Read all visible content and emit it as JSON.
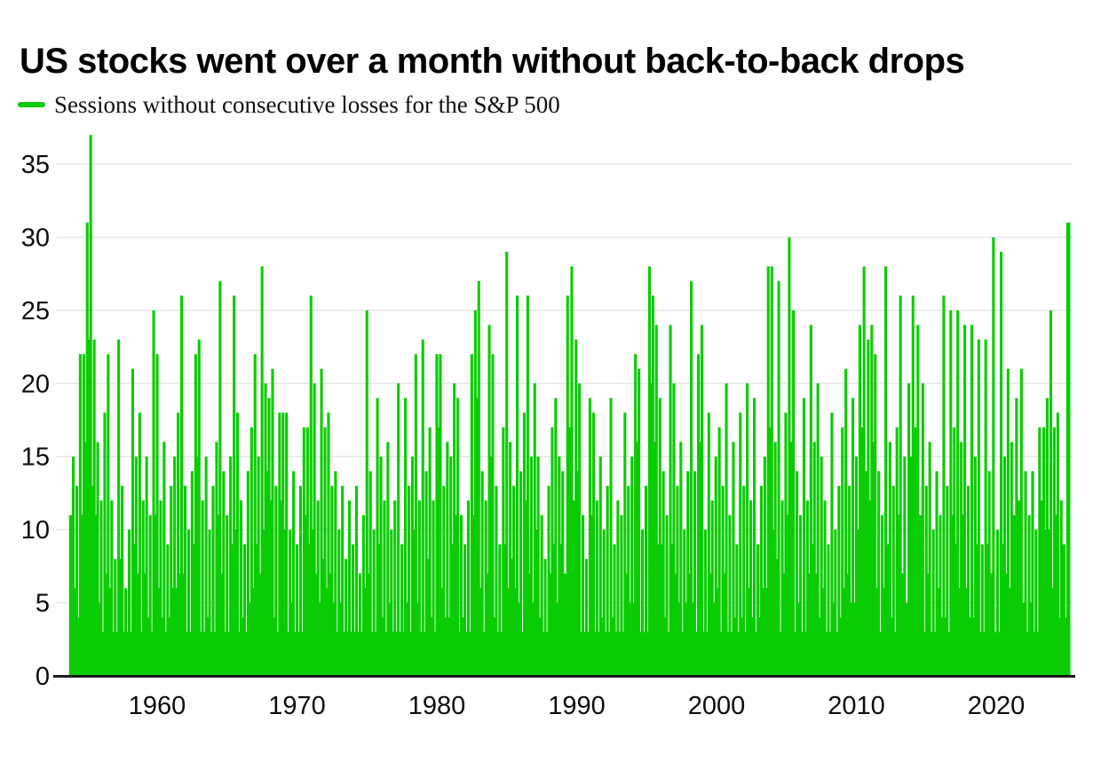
{
  "header": {
    "title": "US stocks went over a month without back-to-back drops"
  },
  "legend": {
    "label": "Sessions without consecutive losses for the S&P 500",
    "swatch_color": "#0acc02"
  },
  "colors": {
    "green": "#0acc02",
    "gridline": "#e7e7e7",
    "axis": "#1a1a1a",
    "text": "#0d0d0d",
    "background": "#ffffff"
  },
  "chart_data": {
    "type": "area",
    "title": "US stocks went over a month without back-to-back drops",
    "series_name": "Sessions without consecutive losses for the S&P 500",
    "xlabel": "",
    "ylabel": "",
    "xlim": [
      1953.8,
      2025.5
    ],
    "ylim": [
      0,
      37
    ],
    "x_ticks": [
      1960,
      1970,
      1980,
      1990,
      2000,
      2010,
      2020
    ],
    "y_ticks": [
      0,
      5,
      10,
      15,
      20,
      25,
      30,
      35
    ],
    "grid": "horizontal",
    "legend_position": "top-left",
    "notable_peaks": {
      "1955": 37,
      "1985": 29,
      "2005": 30,
      "2019": 30,
      "2025": 31
    },
    "points": [
      [
        1953.8,
        11
      ],
      [
        1954.0,
        15
      ],
      [
        1954.25,
        13
      ],
      [
        1954.5,
        22
      ],
      [
        1954.75,
        22
      ],
      [
        1955.0,
        31
      ],
      [
        1955.25,
        37
      ],
      [
        1955.5,
        23
      ],
      [
        1955.75,
        16
      ],
      [
        1956.0,
        12
      ],
      [
        1956.25,
        18
      ],
      [
        1956.5,
        22
      ],
      [
        1956.75,
        12
      ],
      [
        1957.0,
        8
      ],
      [
        1957.25,
        23
      ],
      [
        1957.5,
        13
      ],
      [
        1957.75,
        6
      ],
      [
        1958.0,
        10
      ],
      [
        1958.25,
        21
      ],
      [
        1958.5,
        15
      ],
      [
        1958.75,
        18
      ],
      [
        1959.0,
        12
      ],
      [
        1959.25,
        15
      ],
      [
        1959.5,
        11
      ],
      [
        1959.75,
        25
      ],
      [
        1960.0,
        22
      ],
      [
        1960.25,
        12
      ],
      [
        1960.5,
        16
      ],
      [
        1960.75,
        9
      ],
      [
        1961.0,
        13
      ],
      [
        1961.25,
        15
      ],
      [
        1961.5,
        18
      ],
      [
        1961.75,
        26
      ],
      [
        1962.0,
        13
      ],
      [
        1962.25,
        10
      ],
      [
        1962.5,
        14
      ],
      [
        1962.75,
        22
      ],
      [
        1963.0,
        23
      ],
      [
        1963.25,
        12
      ],
      [
        1963.5,
        15
      ],
      [
        1963.75,
        10
      ],
      [
        1964.0,
        13
      ],
      [
        1964.25,
        16
      ],
      [
        1964.5,
        27
      ],
      [
        1964.75,
        14
      ],
      [
        1965.0,
        11
      ],
      [
        1965.25,
        15
      ],
      [
        1965.5,
        26
      ],
      [
        1965.75,
        18
      ],
      [
        1966.0,
        12
      ],
      [
        1966.25,
        9
      ],
      [
        1966.5,
        14
      ],
      [
        1966.75,
        17
      ],
      [
        1967.0,
        22
      ],
      [
        1967.25,
        15
      ],
      [
        1967.5,
        28
      ],
      [
        1967.75,
        20
      ],
      [
        1968.0,
        19
      ],
      [
        1968.25,
        21
      ],
      [
        1968.5,
        13
      ],
      [
        1968.75,
        18
      ],
      [
        1969.0,
        18
      ],
      [
        1969.25,
        18
      ],
      [
        1969.5,
        10
      ],
      [
        1969.75,
        14
      ],
      [
        1970.0,
        9
      ],
      [
        1970.25,
        13
      ],
      [
        1970.5,
        17
      ],
      [
        1970.75,
        17
      ],
      [
        1971.0,
        26
      ],
      [
        1971.25,
        20
      ],
      [
        1971.5,
        12
      ],
      [
        1971.75,
        21
      ],
      [
        1972.0,
        17
      ],
      [
        1972.25,
        18
      ],
      [
        1972.5,
        13
      ],
      [
        1972.75,
        14
      ],
      [
        1973.0,
        10
      ],
      [
        1973.25,
        13
      ],
      [
        1973.5,
        8
      ],
      [
        1973.75,
        12
      ],
      [
        1974.0,
        9
      ],
      [
        1974.25,
        13
      ],
      [
        1974.5,
        7
      ],
      [
        1974.75,
        11
      ],
      [
        1975.0,
        25
      ],
      [
        1975.25,
        14
      ],
      [
        1975.5,
        10
      ],
      [
        1975.75,
        19
      ],
      [
        1976.0,
        15
      ],
      [
        1976.25,
        12
      ],
      [
        1976.5,
        16
      ],
      [
        1976.75,
        10
      ],
      [
        1977.0,
        12
      ],
      [
        1977.25,
        20
      ],
      [
        1977.5,
        9
      ],
      [
        1977.75,
        19
      ],
      [
        1978.0,
        13
      ],
      [
        1978.25,
        15
      ],
      [
        1978.5,
        22
      ],
      [
        1978.75,
        12
      ],
      [
        1979.0,
        23
      ],
      [
        1979.25,
        14
      ],
      [
        1979.5,
        17
      ],
      [
        1979.75,
        12
      ],
      [
        1980.0,
        22
      ],
      [
        1980.25,
        22
      ],
      [
        1980.5,
        13
      ],
      [
        1980.75,
        16
      ],
      [
        1981.0,
        15
      ],
      [
        1981.25,
        20
      ],
      [
        1981.5,
        19
      ],
      [
        1981.75,
        11
      ],
      [
        1982.0,
        9
      ],
      [
        1982.25,
        12
      ],
      [
        1982.5,
        22
      ],
      [
        1982.75,
        25
      ],
      [
        1983.0,
        27
      ],
      [
        1983.25,
        14
      ],
      [
        1983.5,
        12
      ],
      [
        1983.75,
        24
      ],
      [
        1984.0,
        22
      ],
      [
        1984.25,
        13
      ],
      [
        1984.5,
        9
      ],
      [
        1984.75,
        17
      ],
      [
        1985.0,
        29
      ],
      [
        1985.25,
        16
      ],
      [
        1985.5,
        13
      ],
      [
        1985.75,
        26
      ],
      [
        1986.0,
        14
      ],
      [
        1986.25,
        18
      ],
      [
        1986.5,
        26
      ],
      [
        1986.75,
        15
      ],
      [
        1987.0,
        20
      ],
      [
        1987.25,
        15
      ],
      [
        1987.5,
        11
      ],
      [
        1987.75,
        8
      ],
      [
        1988.0,
        13
      ],
      [
        1988.25,
        17
      ],
      [
        1988.5,
        19
      ],
      [
        1988.75,
        15
      ],
      [
        1989.0,
        14
      ],
      [
        1989.35,
        26
      ],
      [
        1989.65,
        28
      ],
      [
        1989.95,
        23
      ],
      [
        1990.2,
        20
      ],
      [
        1990.45,
        11
      ],
      [
        1990.7,
        8
      ],
      [
        1990.95,
        19
      ],
      [
        1991.2,
        18
      ],
      [
        1991.45,
        12
      ],
      [
        1991.7,
        15
      ],
      [
        1991.95,
        10
      ],
      [
        1992.2,
        13
      ],
      [
        1992.45,
        19
      ],
      [
        1992.7,
        9
      ],
      [
        1992.95,
        12
      ],
      [
        1993.2,
        11
      ],
      [
        1993.45,
        18
      ],
      [
        1993.7,
        13
      ],
      [
        1993.95,
        15
      ],
      [
        1994.2,
        22
      ],
      [
        1994.45,
        21
      ],
      [
        1994.7,
        10
      ],
      [
        1994.95,
        13
      ],
      [
        1995.2,
        28
      ],
      [
        1995.45,
        26
      ],
      [
        1995.7,
        24
      ],
      [
        1995.95,
        19
      ],
      [
        1996.2,
        14
      ],
      [
        1996.45,
        11
      ],
      [
        1996.7,
        24
      ],
      [
        1996.95,
        20
      ],
      [
        1997.2,
        13
      ],
      [
        1997.45,
        16
      ],
      [
        1997.7,
        10
      ],
      [
        1997.95,
        14
      ],
      [
        1998.2,
        27
      ],
      [
        1998.45,
        14
      ],
      [
        1998.7,
        22
      ],
      [
        1998.95,
        24
      ],
      [
        1999.2,
        10
      ],
      [
        1999.45,
        18
      ],
      [
        1999.7,
        12
      ],
      [
        1999.95,
        15
      ],
      [
        2000.2,
        17
      ],
      [
        2000.45,
        13
      ],
      [
        2000.7,
        20
      ],
      [
        2000.95,
        11
      ],
      [
        2001.2,
        16
      ],
      [
        2001.45,
        9
      ],
      [
        2001.7,
        18
      ],
      [
        2001.95,
        13
      ],
      [
        2002.2,
        20
      ],
      [
        2002.45,
        12
      ],
      [
        2002.7,
        19
      ],
      [
        2002.95,
        9
      ],
      [
        2003.2,
        13
      ],
      [
        2003.45,
        15
      ],
      [
        2003.7,
        28
      ],
      [
        2003.95,
        28
      ],
      [
        2004.2,
        16
      ],
      [
        2004.45,
        27
      ],
      [
        2004.7,
        12
      ],
      [
        2004.95,
        18
      ],
      [
        2005.2,
        30
      ],
      [
        2005.5,
        25
      ],
      [
        2005.75,
        14
      ],
      [
        2006.0,
        11
      ],
      [
        2006.25,
        19
      ],
      [
        2006.5,
        12
      ],
      [
        2006.75,
        24
      ],
      [
        2007.0,
        16
      ],
      [
        2007.25,
        20
      ],
      [
        2007.5,
        15
      ],
      [
        2007.75,
        12
      ],
      [
        2008.0,
        9
      ],
      [
        2008.25,
        18
      ],
      [
        2008.5,
        10
      ],
      [
        2008.75,
        13
      ],
      [
        2009.0,
        17
      ],
      [
        2009.25,
        21
      ],
      [
        2009.5,
        13
      ],
      [
        2009.75,
        19
      ],
      [
        2010.0,
        15
      ],
      [
        2010.25,
        24
      ],
      [
        2010.55,
        28
      ],
      [
        2010.85,
        23
      ],
      [
        2011.1,
        24
      ],
      [
        2011.35,
        22
      ],
      [
        2011.6,
        14
      ],
      [
        2011.85,
        11
      ],
      [
        2012.1,
        28
      ],
      [
        2012.4,
        16
      ],
      [
        2012.65,
        13
      ],
      [
        2012.9,
        17
      ],
      [
        2013.15,
        26
      ],
      [
        2013.45,
        15
      ],
      [
        2013.75,
        20
      ],
      [
        2014.05,
        26
      ],
      [
        2014.4,
        24
      ],
      [
        2014.75,
        20
      ],
      [
        2015.0,
        13
      ],
      [
        2015.25,
        16
      ],
      [
        2015.5,
        10
      ],
      [
        2015.75,
        14
      ],
      [
        2016.0,
        11
      ],
      [
        2016.25,
        26
      ],
      [
        2016.5,
        13
      ],
      [
        2016.75,
        25
      ],
      [
        2017.0,
        17
      ],
      [
        2017.25,
        25
      ],
      [
        2017.5,
        16
      ],
      [
        2017.75,
        24
      ],
      [
        2018.0,
        13
      ],
      [
        2018.25,
        24
      ],
      [
        2018.5,
        15
      ],
      [
        2018.75,
        23
      ],
      [
        2019.0,
        9
      ],
      [
        2019.25,
        23
      ],
      [
        2019.5,
        14
      ],
      [
        2019.8,
        30
      ],
      [
        2020.1,
        10
      ],
      [
        2020.35,
        29
      ],
      [
        2020.6,
        15
      ],
      [
        2020.85,
        21
      ],
      [
        2021.1,
        16
      ],
      [
        2021.45,
        19
      ],
      [
        2021.8,
        21
      ],
      [
        2022.1,
        14
      ],
      [
        2022.35,
        11
      ],
      [
        2022.6,
        14
      ],
      [
        2022.85,
        10
      ],
      [
        2023.1,
        17
      ],
      [
        2023.4,
        17
      ],
      [
        2023.65,
        19
      ],
      [
        2023.9,
        25
      ],
      [
        2024.15,
        17
      ],
      [
        2024.4,
        18
      ],
      [
        2024.65,
        12
      ],
      [
        2024.85,
        9
      ],
      [
        2025.1,
        31
      ],
      [
        2025.2,
        31
      ]
    ]
  }
}
